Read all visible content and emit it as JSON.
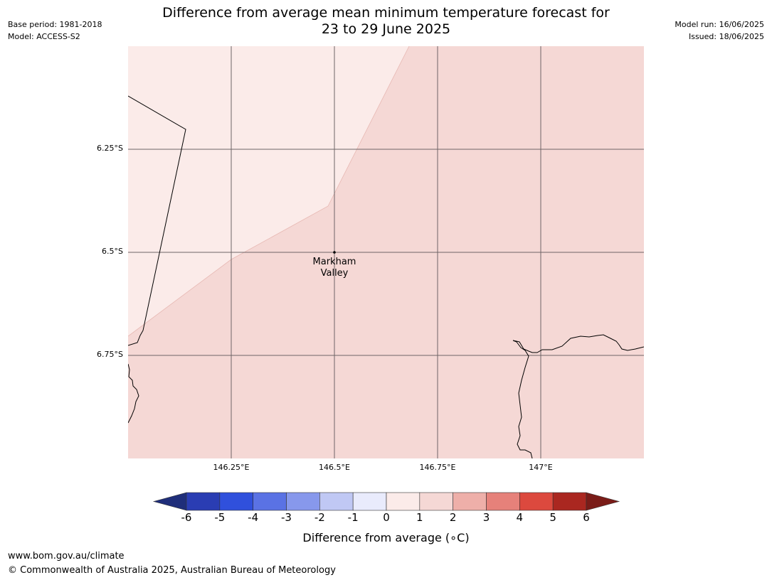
{
  "header": {
    "base_period": "Base period: 1981-2018",
    "model": "Model: ACCESS-S2",
    "model_run": "Model run: 16/06/2025",
    "issued": "Issued: 18/06/2025",
    "title_line1": "Difference from average mean minimum temperature forecast for",
    "title_line2": "23 to 29 June 2025"
  },
  "map": {
    "place_label_line1": "Markham",
    "place_label_line2": "Valley",
    "lat_labels": [
      "6.25°S",
      "6.5°S",
      "6.75°S"
    ],
    "lon_labels": [
      "146.25°E",
      "146.5°E",
      "146.75°E",
      "147°E"
    ],
    "fill_colors": {
      "zero_to_one": "#fbebe9",
      "one_to_two": "#f5d8d5"
    }
  },
  "colorbar": {
    "tick_labels": [
      "-6",
      "-5",
      "-4",
      "-3",
      "-2",
      "-1",
      "0",
      "1",
      "2",
      "3",
      "4",
      "5",
      "6"
    ],
    "colors": [
      "#1f2e7a",
      "#2a3db3",
      "#3050dc",
      "#5a72e4",
      "#8798ec",
      "#c0c8f4",
      "#e9ebfc",
      "#fbebe9",
      "#f5d8d5",
      "#eeafa9",
      "#e6817a",
      "#dc493e",
      "#aa2720",
      "#7a1c18"
    ],
    "label": "Difference from average (",
    "label_unit": "∘C)"
  },
  "footer": {
    "url": "www.bom.gov.au/climate",
    "copyright": "© Commonwealth of Australia 2025, Australian Bureau of Meteorology"
  }
}
